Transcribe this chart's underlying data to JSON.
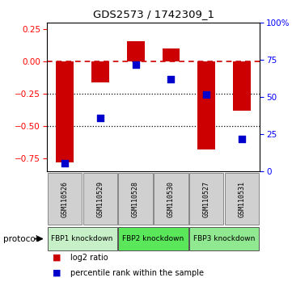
{
  "title": "GDS2573 / 1742309_1",
  "samples": [
    "GSM110526",
    "GSM110529",
    "GSM110528",
    "GSM110530",
    "GSM110527",
    "GSM110531"
  ],
  "log2_ratio": [
    -0.78,
    -0.16,
    0.16,
    0.1,
    -0.68,
    -0.38
  ],
  "percentile_rank": [
    5.5,
    36,
    72,
    62,
    52,
    22
  ],
  "groups": [
    {
      "label": "FBP1 knockdown",
      "start": 0,
      "end": 2,
      "color": "#c8f0c8"
    },
    {
      "label": "FBP2 knockdown",
      "start": 2,
      "end": 4,
      "color": "#5ae85a"
    },
    {
      "label": "FBP3 knockdown",
      "start": 4,
      "end": 6,
      "color": "#90e890"
    }
  ],
  "ylim_left": [
    -0.85,
    0.3
  ],
  "ylim_right": [
    0,
    100
  ],
  "left_ticks": [
    0.25,
    0,
    -0.25,
    -0.5,
    -0.75
  ],
  "right_ticks": [
    100,
    75,
    50,
    25,
    0
  ],
  "bar_color": "#cc0000",
  "dot_color": "#0000cc",
  "bar_width": 0.5,
  "dot_size": 40,
  "background_color": "#ffffff",
  "hline_color": "#cc0000",
  "dotted_line_color": "#000000",
  "legend_items": [
    "log2 ratio",
    "percentile rank within the sample"
  ],
  "cell_color": "#d0d0d0",
  "cell_border_color": "#888888"
}
